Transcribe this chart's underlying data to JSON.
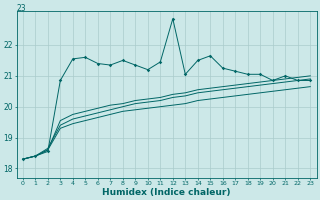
{
  "title": "23",
  "xlabel": "Humidex (Indice chaleur)",
  "ylabel": "",
  "bg_color": "#cce8e8",
  "grid_color": "#aacccc",
  "line_color": "#006666",
  "xlim": [
    -0.5,
    23.5
  ],
  "ylim": [
    17.7,
    23.1
  ],
  "yticks": [
    18,
    19,
    20,
    21,
    22
  ],
  "xticks": [
    0,
    1,
    2,
    3,
    4,
    5,
    6,
    7,
    8,
    9,
    10,
    11,
    12,
    13,
    14,
    15,
    16,
    17,
    18,
    19,
    20,
    21,
    22,
    23
  ],
  "s1_x": [
    0,
    1,
    2,
    3,
    4,
    5,
    6,
    7,
    8,
    9,
    10,
    11,
    12,
    13,
    14,
    15,
    16,
    17,
    18,
    19,
    20,
    21,
    22,
    23
  ],
  "s1_y": [
    18.3,
    18.4,
    18.55,
    20.85,
    21.55,
    21.6,
    21.4,
    21.35,
    21.5,
    21.35,
    21.2,
    21.45,
    22.85,
    21.05,
    21.5,
    21.65,
    21.25,
    21.15,
    21.05,
    21.05,
    20.85,
    21.0,
    20.85,
    20.85
  ],
  "s2_x": [
    0,
    1,
    2,
    3,
    4,
    5,
    6,
    7,
    8,
    9,
    10,
    11,
    12,
    13,
    14,
    15,
    16,
    17,
    18,
    19,
    20,
    21,
    22,
    23
  ],
  "s2_y": [
    18.3,
    18.4,
    18.6,
    19.55,
    19.75,
    19.85,
    19.95,
    20.05,
    20.1,
    20.2,
    20.25,
    20.3,
    20.4,
    20.45,
    20.55,
    20.6,
    20.65,
    20.7,
    20.75,
    20.8,
    20.85,
    20.9,
    20.95,
    21.0
  ],
  "s3_x": [
    0,
    1,
    2,
    3,
    4,
    5,
    6,
    7,
    8,
    9,
    10,
    11,
    12,
    13,
    14,
    15,
    16,
    17,
    18,
    19,
    20,
    21,
    22,
    23
  ],
  "s3_y": [
    18.3,
    18.4,
    18.6,
    19.3,
    19.45,
    19.55,
    19.65,
    19.75,
    19.85,
    19.9,
    19.95,
    20.0,
    20.05,
    20.1,
    20.2,
    20.25,
    20.3,
    20.35,
    20.4,
    20.45,
    20.5,
    20.55,
    20.6,
    20.65
  ],
  "s4_x": [
    0,
    1,
    2,
    3,
    4,
    5,
    6,
    7,
    8,
    9,
    10,
    11,
    12,
    13,
    14,
    15,
    16,
    17,
    18,
    19,
    20,
    21,
    22,
    23
  ],
  "s4_y": [
    18.3,
    18.4,
    18.65,
    19.4,
    19.6,
    19.7,
    19.8,
    19.9,
    20.0,
    20.1,
    20.15,
    20.2,
    20.3,
    20.35,
    20.45,
    20.5,
    20.55,
    20.6,
    20.65,
    20.7,
    20.75,
    20.8,
    20.85,
    20.9
  ]
}
